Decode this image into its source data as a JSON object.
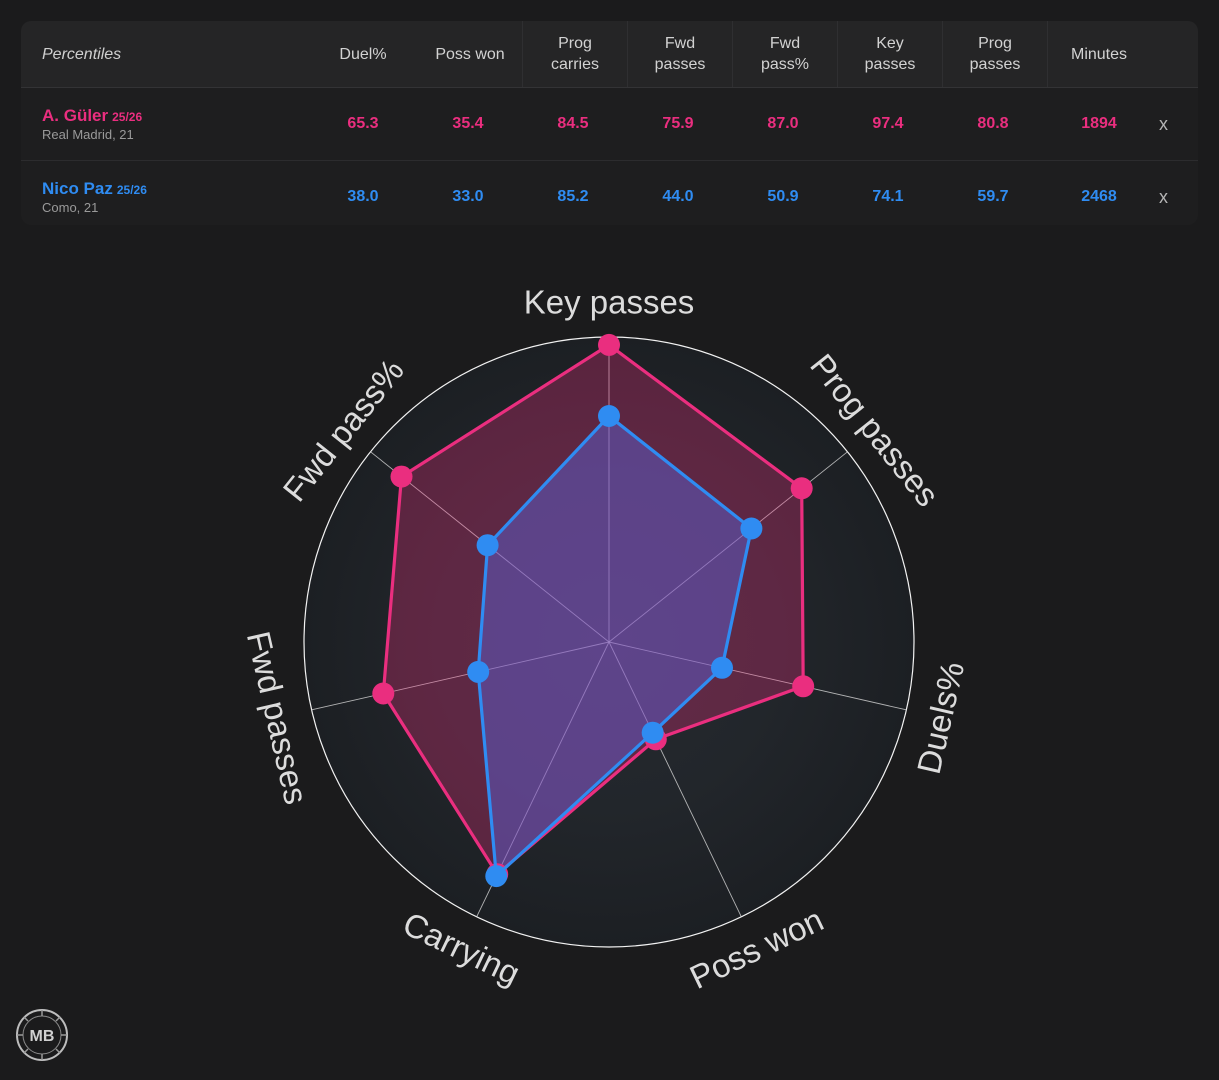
{
  "table": {
    "corner_label": "Percentiles",
    "columns": [
      {
        "lines": [
          "Duel%"
        ]
      },
      {
        "lines": [
          "Poss won"
        ]
      },
      {
        "lines": [
          "Prog",
          "carries"
        ]
      },
      {
        "lines": [
          "Fwd",
          "passes"
        ]
      },
      {
        "lines": [
          "Fwd",
          "pass%"
        ]
      },
      {
        "lines": [
          "Key",
          "passes"
        ]
      },
      {
        "lines": [
          "Prog",
          "passes"
        ]
      },
      {
        "lines": [
          "Minutes"
        ]
      }
    ],
    "remove_label": "x",
    "rows": [
      {
        "name": "A. Güler",
        "season": "25/26",
        "team": "Real Madrid, 21",
        "values": [
          "65.3",
          "35.4",
          "84.5",
          "75.9",
          "87.0",
          "97.4",
          "80.8",
          "1894"
        ]
      },
      {
        "name": "Nico Paz",
        "season": "25/26",
        "team": "Como, 21",
        "values": [
          "38.0",
          "33.0",
          "85.2",
          "44.0",
          "50.9",
          "74.1",
          "59.7",
          "2468"
        ]
      }
    ]
  },
  "chart_data": {
    "type": "radar",
    "axes": [
      "Key passes",
      "Prog passes",
      "Duels%",
      "Poss won",
      "Carrying",
      "Fwd passes",
      "Fwd pass%"
    ],
    "rlim": [
      0,
      100
    ],
    "series": [
      {
        "name": "A. Güler",
        "color": "#ea2e7f",
        "values": [
          97.4,
          80.8,
          65.3,
          35.4,
          84.5,
          75.9,
          87.0
        ]
      },
      {
        "name": "Nico Paz",
        "color": "#2f8cf2",
        "values": [
          74.1,
          59.7,
          38.0,
          33.0,
          85.2,
          44.0,
          50.9
        ]
      }
    ]
  },
  "logo": {
    "text": "MB"
  }
}
